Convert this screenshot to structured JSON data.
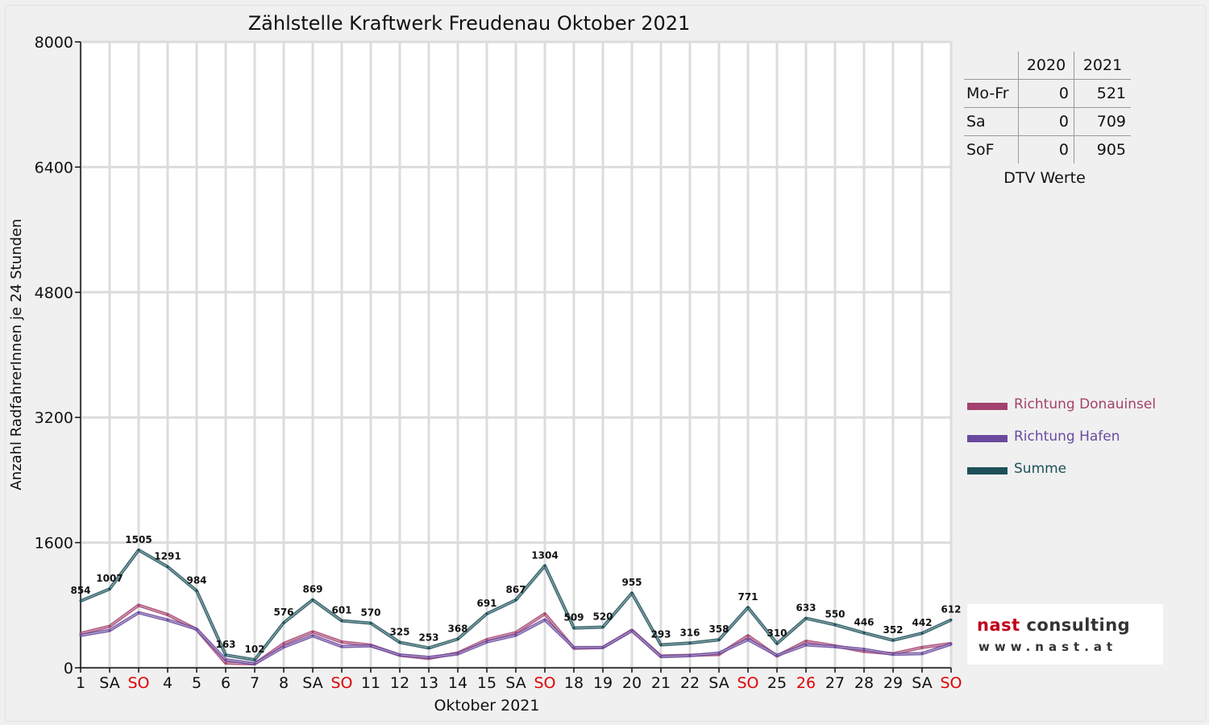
{
  "chart_data": {
    "type": "line",
    "title": "Zählstelle Kraftwerk Freudenau Oktober 2021",
    "xlabel": "Oktober 2021",
    "ylabel": "Anzahl RadfahrerInnen je 24 Stunden",
    "ylim": [
      0,
      8000
    ],
    "yticks": [
      0,
      1600,
      3200,
      4800,
      6400,
      8000
    ],
    "grid": true,
    "legend_position": "right",
    "categories": [
      "1",
      "SA",
      "SO",
      "4",
      "5",
      "6",
      "7",
      "8",
      "SA",
      "SO",
      "11",
      "12",
      "13",
      "14",
      "15",
      "SA",
      "SO",
      "18",
      "19",
      "20",
      "21",
      "22",
      "SA",
      "SO",
      "25",
      "26",
      "27",
      "28",
      "29",
      "SA",
      "SO"
    ],
    "highlighted_categories": [
      "SO",
      "26"
    ],
    "highlight_color": "#e00000",
    "series": [
      {
        "name": "Richtung Donauinsel",
        "color": "#a3426e",
        "values": [
          440,
          530,
          800,
          680,
          490,
          60,
          50,
          310,
          460,
          330,
          290,
          160,
          120,
          190,
          360,
          450,
          690,
          250,
          260,
          480,
          150,
          160,
          170,
          410,
          150,
          340,
          280,
          210,
          180,
          260,
          310
        ]
      },
      {
        "name": "Richtung Hafen",
        "color": "#6a4a9e",
        "values": [
          414,
          477,
          705,
          611,
          494,
          103,
          52,
          266,
          409,
          271,
          280,
          165,
          133,
          178,
          331,
          417,
          614,
          259,
          260,
          475,
          143,
          156,
          188,
          361,
          160,
          293,
          270,
          236,
          172,
          182,
          302
        ]
      },
      {
        "name": "Summe",
        "color": "#1d5059",
        "values": [
          854,
          1007,
          1505,
          1291,
          984,
          163,
          102,
          576,
          869,
          601,
          570,
          325,
          253,
          368,
          691,
          867,
          1304,
          509,
          520,
          955,
          293,
          316,
          358,
          771,
          310,
          633,
          550,
          446,
          352,
          442,
          612
        ],
        "data_labels": [
          "854",
          "1007",
          "1505",
          "1291",
          "984",
          "163",
          "102",
          "576",
          "869",
          "601",
          "570",
          "325",
          "253",
          "368",
          "691",
          "867",
          "1304",
          "509",
          "520",
          "955",
          "293",
          "316",
          "358",
          "771",
          "310",
          "633",
          "550",
          "446",
          "352",
          "442",
          "612"
        ]
      }
    ]
  },
  "dtv": {
    "headers": [
      "",
      "2020",
      "2021"
    ],
    "rows": [
      {
        "label": "Mo-Fr",
        "v2020": "0",
        "v2021": "521"
      },
      {
        "label": "Sa",
        "v2020": "0",
        "v2021": "709"
      },
      {
        "label": "SoF",
        "v2020": "0",
        "v2021": "905"
      }
    ],
    "caption": "DTV Werte"
  },
  "logo": {
    "brand": "nast",
    "brand2": "consulting",
    "url": "www.nast.at",
    "brand_color": "#c0001a"
  }
}
